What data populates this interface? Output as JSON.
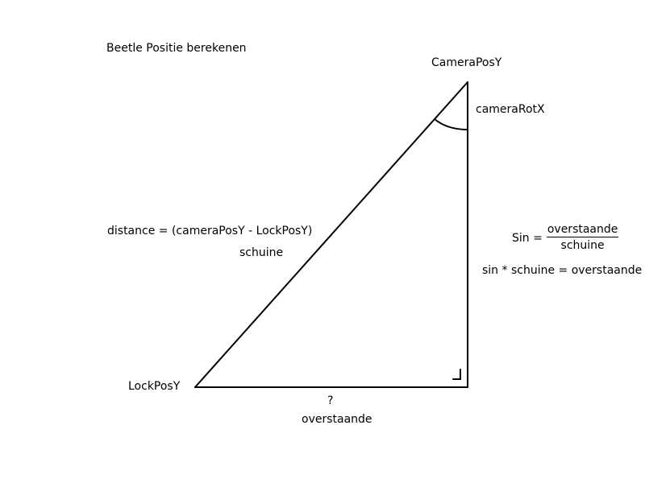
{
  "title": "Beetle Positie berekenen",
  "vertices": {
    "top": "CameraPosY",
    "bottom_left": "LockPosY"
  },
  "angle_label": "cameraRotX",
  "hypotenuse": {
    "formula": "distance = (cameraPosY - LockPosY)",
    "name": "schuine"
  },
  "bottom_side": {
    "unknown": "?",
    "name": "overstaande"
  },
  "sine_rule": {
    "lhs": "Sin =",
    "numerator": "overstaande",
    "denominator": "schuine"
  },
  "derived_rule": "sin * schuine = overstaande",
  "stroke_color": "#000000",
  "background_color": "#ffffff"
}
